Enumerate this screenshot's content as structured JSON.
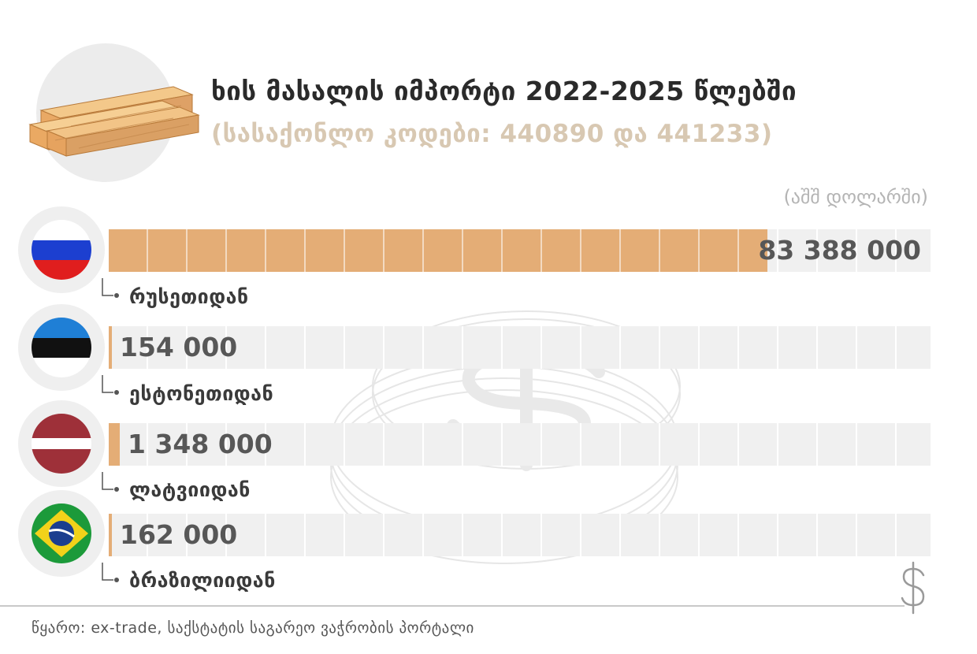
{
  "header": {
    "title": "ხის მასალის იმპორტი 2022-2025 წლებში",
    "subtitle": "(სასაქონლო კოდები: 440890 და 441233)",
    "unit": "(აშშ დოლარში)"
  },
  "chart_data": {
    "type": "bar",
    "orientation": "horizontal",
    "title": "ხის მასალის იმპორტი 2022-2025 წლებში",
    "subtitle": "(სასაქონლო კოდები: 440890 და 441233)",
    "unit": "(აშშ დოლარში)",
    "xlim": [
      0,
      104000000
    ],
    "grid": true,
    "categories": [
      "რუსეთიდან",
      "ესტონეთიდან",
      "ლატვიიდან",
      "ბრაზილიიდან"
    ],
    "values": [
      83388000,
      154000,
      1348000,
      162000
    ],
    "value_labels": [
      "83 388 000",
      "154 000",
      "1 348 000",
      "162 000"
    ],
    "flags": [
      "russia-flag",
      "estonia-flag",
      "latvia-flag",
      "brazil-flag"
    ],
    "bar_color": "#e4ad76",
    "track_color": "#f0f0f0"
  },
  "source": {
    "text": "წყარო:  ex-trade, საქსტატის საგარეო ვაჭრობის პორტალი"
  },
  "icons": {
    "logo": "timber-logs-icon",
    "watermark": "dollar-coins-watermark-icon",
    "corner": "dollar-sign-icon"
  }
}
